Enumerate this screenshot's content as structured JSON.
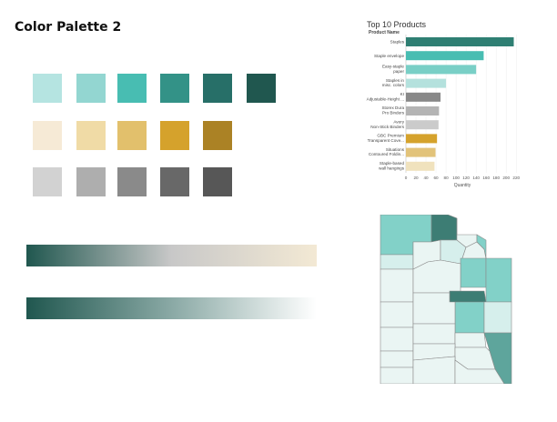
{
  "page": {
    "title": "Color Palette 2"
  },
  "palette": {
    "row1": [
      "#b5e4e1",
      "#93d6d1",
      "#48bdb2",
      "#339287",
      "#276f68",
      "#20574f"
    ],
    "row2": [
      "#f6ead6",
      "#f0dba6",
      "#e2c06c",
      "#d5a22c",
      "#ab8225"
    ],
    "row3": [
      "#d2d2d2",
      "#aeaeae",
      "#8a8a8a",
      "#686868",
      "#575757"
    ]
  },
  "gradients": [
    {
      "from": "#20574f",
      "mid": "#c8c8c8",
      "to": "#f3e9d4"
    },
    {
      "from": "#20574f",
      "mid": "#8aa9a5",
      "to": "#ffffff"
    }
  ],
  "chart_data": {
    "type": "bar",
    "orientation": "horizontal",
    "title": "Top 10 Products",
    "ylabel": "Product Name",
    "xlabel": "Quantity",
    "categories": [
      "Staples",
      "Staple envelope",
      "Easy-staple paper",
      "Staples in misc. colors",
      "KI Adjustable-Height ...",
      "Storex Dura Pro Binders",
      "Avery Non-Stick Binders",
      "GBC Premium Transparent Cove...",
      "Situations Contoured Foldin...",
      "Staple-based wall hangings"
    ],
    "values": [
      215,
      155,
      140,
      80,
      69,
      66,
      65,
      62,
      59,
      57
    ],
    "colors": [
      "#2f7f73",
      "#48bdb2",
      "#79cfc6",
      "#b4e1dd",
      "#888888",
      "#b4b4b4",
      "#cbcbcb",
      "#d5a22c",
      "#e2c37a",
      "#f0e2bd"
    ],
    "xticks": [
      0,
      20,
      40,
      60,
      80,
      100,
      120,
      140,
      160,
      180,
      200,
      220
    ],
    "xlim": [
      0,
      225
    ],
    "grid": true
  },
  "map": {
    "fills": {
      "light": "#eaf5f3",
      "pale": "#d6efec",
      "mid": "#82d1c8",
      "dark": "#5ea59c",
      "darkest": "#3d7d74",
      "stroke": "#8a8a8a"
    }
  }
}
